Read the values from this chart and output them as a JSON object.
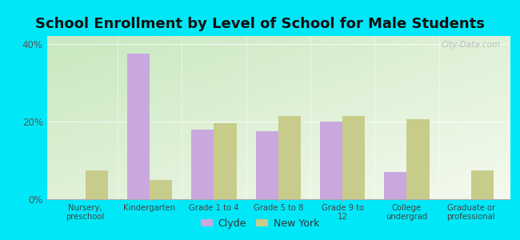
{
  "title": "School Enrollment by Level of School for Male Students",
  "categories": [
    "Nursery,\npreschool",
    "Kindergarten",
    "Grade 1 to 4",
    "Grade 5 to 8",
    "Grade 9 to\n12",
    "College\nundergrad",
    "Graduate or\nprofessional"
  ],
  "clyde_values": [
    0,
    37.5,
    18,
    17.5,
    20,
    7,
    0
  ],
  "newyork_values": [
    7.5,
    5,
    19.5,
    21.5,
    21.5,
    20.5,
    7.5
  ],
  "clyde_color": "#c9a8e0",
  "newyork_color": "#c8cc8a",
  "title_fontsize": 13,
  "ylim": [
    0,
    42
  ],
  "yticks": [
    0,
    20,
    40
  ],
  "ytick_labels": [
    "0%",
    "20%",
    "40%"
  ],
  "legend_labels": [
    "Clyde",
    "New York"
  ],
  "outer_bg": "#00e8f8",
  "plot_bg_topleft": "#c8e8c0",
  "plot_bg_bottomright": "#f5faee",
  "bar_width": 0.35
}
